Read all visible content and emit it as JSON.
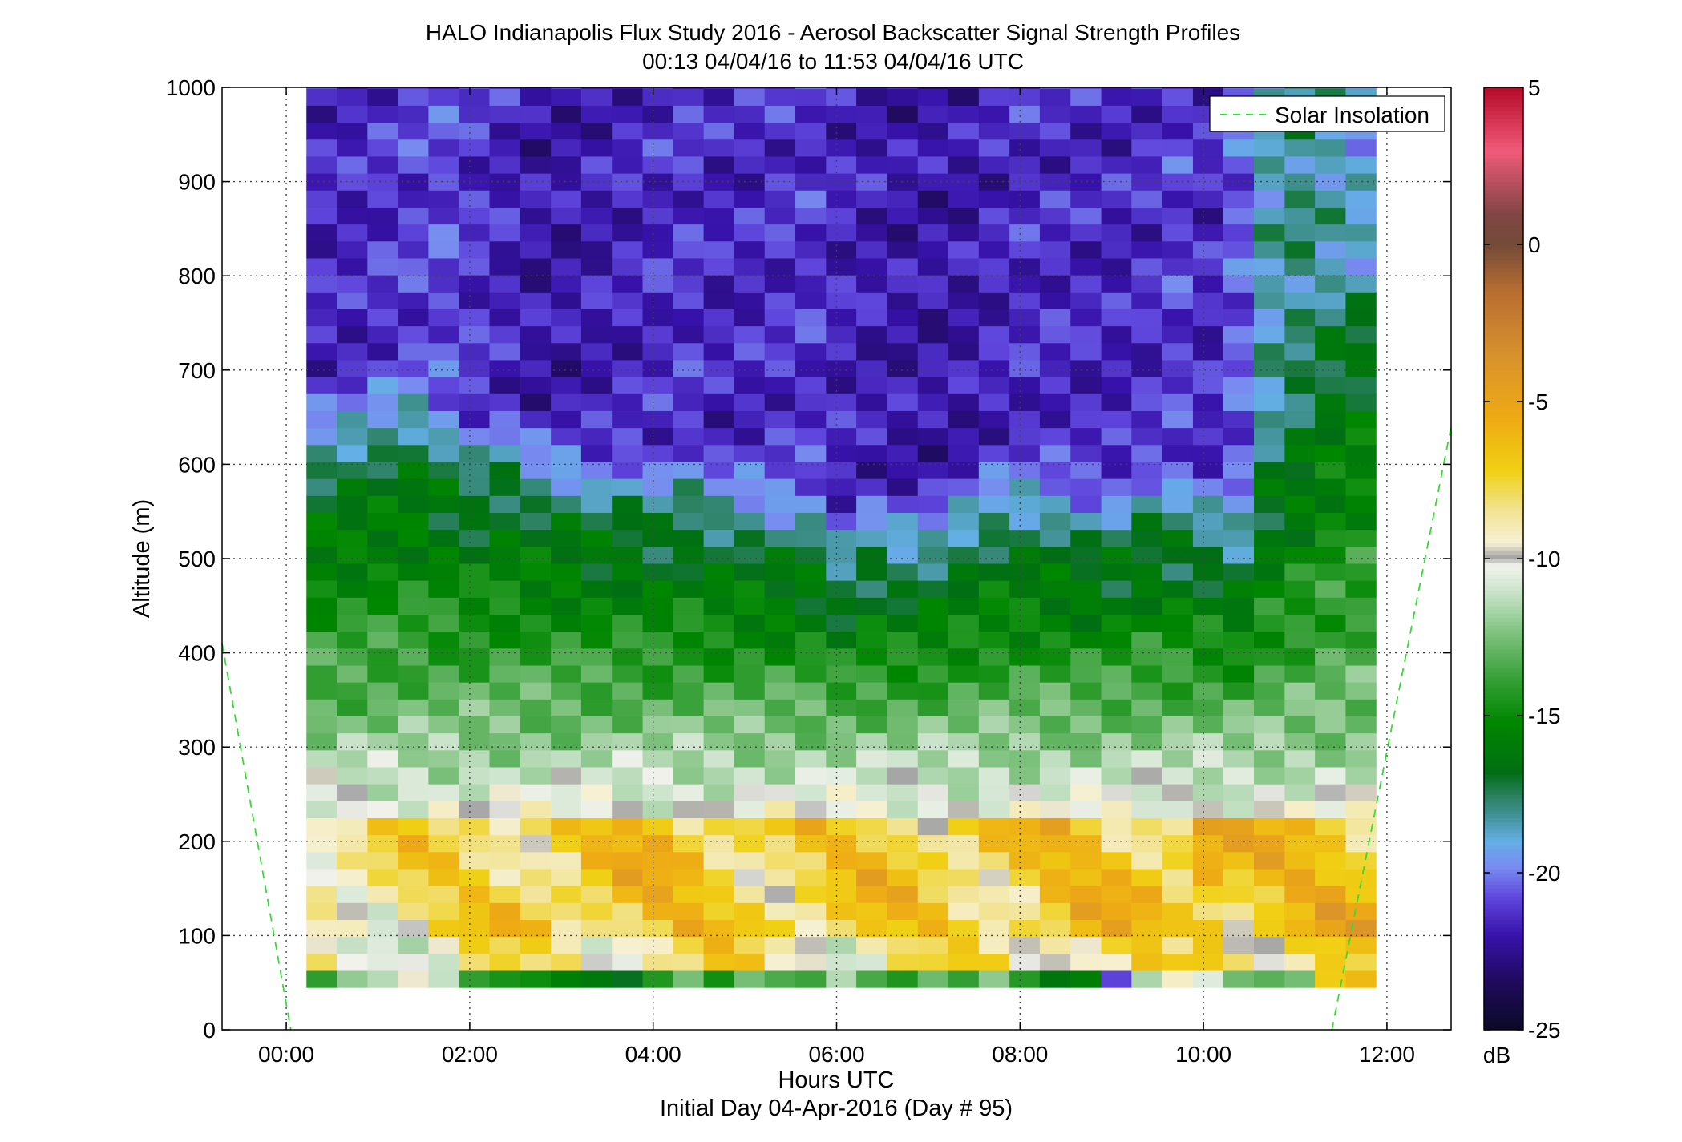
{
  "chart_data": {
    "type": "heatmap",
    "title": "HALO Indianapolis Flux Study 2016 - Aerosol Backscatter Signal Strength Profiles",
    "subtitle": "00:13 04/04/16 to 11:53 04/04/16  UTC",
    "xlabel": "Hours UTC",
    "xlabel2": "Initial Day 04-Apr-2016 (Day # 95)",
    "ylabel": "Altitude (m)",
    "xlim": [
      -0.7,
      12.7
    ],
    "ylim": [
      0,
      1000
    ],
    "x_ticks": [
      0,
      2,
      4,
      6,
      8,
      10,
      12
    ],
    "x_tick_labels": [
      "00:00",
      "02:00",
      "04:00",
      "06:00",
      "08:00",
      "10:00",
      "12:00"
    ],
    "y_ticks": [
      0,
      100,
      200,
      300,
      400,
      500,
      600,
      700,
      800,
      900,
      1000
    ],
    "y_tick_labels": [
      "0",
      "100",
      "200",
      "300",
      "400",
      "500",
      "600",
      "700",
      "800",
      "900",
      "1000"
    ],
    "grid": true,
    "colorbar": {
      "range": [
        -25,
        5
      ],
      "ticks": [
        5,
        0,
        -5,
        -10,
        -15,
        -20,
        -25
      ],
      "tick_labels": [
        "5",
        "0",
        "-5",
        "-10",
        "-15",
        "-20",
        "-25"
      ],
      "unit": "dB"
    },
    "legend": {
      "position": "top-right",
      "entries": [
        "Solar Insolation"
      ]
    },
    "solar_insolation_lines": [
      {
        "x": [
          -0.7,
          0.05
        ],
        "y": [
          410,
          0
        ]
      },
      {
        "x": [
          11.4,
          12.7
        ],
        "y": [
          0,
          640
        ]
      }
    ],
    "heatmap": {
      "time_range": [
        0.22,
        11.88
      ],
      "altitude_range": [
        45,
        1000
      ],
      "gate_size_m": 18,
      "profiles": [
        {
          "t": 0.38,
          "pbl": 640,
          "surface": -14,
          "mix": -8.5,
          "aloft": -21.5
        },
        {
          "t": 0.72,
          "pbl": 650,
          "surface": -13,
          "mix": -8.5,
          "aloft": -21.5
        },
        {
          "t": 1.05,
          "pbl": 660,
          "surface": -11,
          "mix": -8.5,
          "aloft": -21.2
        },
        {
          "t": 1.38,
          "pbl": 670,
          "surface": -10.5,
          "mix": -8.3,
          "aloft": -21
        },
        {
          "t": 1.72,
          "pbl": 640,
          "surface": -11.5,
          "mix": -8.2,
          "aloft": -20.8
        },
        {
          "t": 2.05,
          "pbl": 620,
          "surface": -13,
          "mix": -7.8,
          "aloft": -21.2
        },
        {
          "t": 2.38,
          "pbl": 630,
          "surface": -15,
          "mix": -7.5,
          "aloft": -21.6
        },
        {
          "t": 2.72,
          "pbl": 610,
          "surface": -14,
          "mix": -7.2,
          "aloft": -22
        },
        {
          "t": 3.05,
          "pbl": 605,
          "surface": -15,
          "mix": -7.2,
          "aloft": -22
        },
        {
          "t": 3.38,
          "pbl": 590,
          "surface": -17,
          "mix": -7,
          "aloft": -21.8
        },
        {
          "t": 3.72,
          "pbl": 595,
          "surface": -16.5,
          "mix": -7,
          "aloft": -21.6
        },
        {
          "t": 4.05,
          "pbl": 580,
          "surface": -15,
          "mix": -7,
          "aloft": -21.4
        },
        {
          "t": 4.38,
          "pbl": 590,
          "surface": -13.5,
          "mix": -7,
          "aloft": -21.2
        },
        {
          "t": 4.72,
          "pbl": 575,
          "surface": -14,
          "mix": -7.2,
          "aloft": -21.6
        },
        {
          "t": 5.05,
          "pbl": 570,
          "surface": -13,
          "mix": -7.2,
          "aloft": -21.5
        },
        {
          "t": 5.38,
          "pbl": 560,
          "surface": -13,
          "mix": -7.5,
          "aloft": -21.3
        },
        {
          "t": 5.72,
          "pbl": 560,
          "surface": -12.5,
          "mix": -7.5,
          "aloft": -21.2
        },
        {
          "t": 6.05,
          "pbl": 520,
          "surface": -12,
          "mix": -7.5,
          "aloft": -21.6
        },
        {
          "t": 6.38,
          "pbl": 545,
          "surface": -13,
          "mix": -7.3,
          "aloft": -21.8
        },
        {
          "t": 6.72,
          "pbl": 535,
          "surface": -14.5,
          "mix": -7.3,
          "aloft": -22
        },
        {
          "t": 7.05,
          "pbl": 540,
          "surface": -14,
          "mix": -7.3,
          "aloft": -22
        },
        {
          "t": 7.38,
          "pbl": 560,
          "surface": -13.5,
          "mix": -7.3,
          "aloft": -22
        },
        {
          "t": 7.72,
          "pbl": 575,
          "surface": -12.5,
          "mix": -7.3,
          "aloft": -21.6
        },
        {
          "t": 8.05,
          "pbl": 575,
          "surface": -14.5,
          "mix": -7.2,
          "aloft": -21.4
        },
        {
          "t": 8.38,
          "pbl": 570,
          "surface": -15,
          "mix": -7,
          "aloft": -21.4
        },
        {
          "t": 8.72,
          "pbl": 560,
          "surface": -16,
          "mix": -7,
          "aloft": -21.5
        },
        {
          "t": 9.05,
          "pbl": 560,
          "surface": -20.5,
          "mix": -7,
          "aloft": -21.6
        },
        {
          "t": 9.38,
          "pbl": 580,
          "surface": -11,
          "mix": -6.8,
          "aloft": -21.4
        },
        {
          "t": 9.72,
          "pbl": 570,
          "surface": -10.5,
          "mix": -6.8,
          "aloft": -21
        },
        {
          "t": 10.05,
          "pbl": 560,
          "surface": -10.5,
          "mix": -5.5,
          "aloft": -21.5
        },
        {
          "t": 10.38,
          "pbl": 540,
          "surface": -13,
          "mix": -7,
          "aloft": -20.5
        },
        {
          "t": 10.72,
          "pbl": 620,
          "surface": -14,
          "mix": -7,
          "aloft": -18.5
        },
        {
          "t": 11.05,
          "pbl": 680,
          "surface": -11.5,
          "mix": -6.8,
          "aloft": -18
        },
        {
          "t": 11.38,
          "pbl": 760,
          "surface": -7,
          "mix": -6.5,
          "aloft": -18.5
        },
        {
          "t": 11.72,
          "pbl": 790,
          "surface": -6,
          "mix": -6.5,
          "aloft": -19
        }
      ]
    }
  }
}
